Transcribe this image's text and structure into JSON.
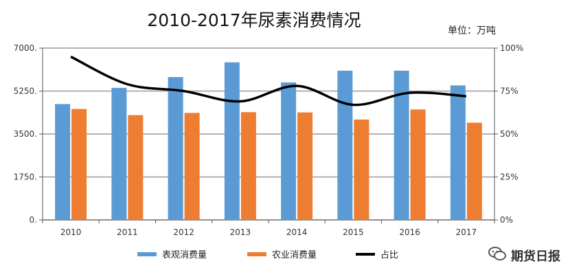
{
  "unit_label": "单位：万吨",
  "watermark": {
    "text": "期货日报",
    "icon": "wechat-icon"
  },
  "colors": {
    "blue": "#5b9bd5",
    "orange": "#ed7d31",
    "line": "#000000",
    "grid": "#999999"
  },
  "chart_data": {
    "type": "bar",
    "title": "2010-2017年尿素消费情况",
    "categories": [
      "2010",
      "2011",
      "2012",
      "2013",
      "2014",
      "2015",
      "2016",
      "2017"
    ],
    "series": [
      {
        "name": "表观消费量",
        "type": "bar",
        "axis": "left",
        "color": "#5b9bd5",
        "values": [
          4720,
          5380,
          5820,
          6420,
          5600,
          6080,
          6080,
          5480
        ]
      },
      {
        "name": "农业消费量",
        "type": "bar",
        "axis": "left",
        "color": "#ed7d31",
        "values": [
          4520,
          4270,
          4360,
          4390,
          4380,
          4090,
          4500,
          3960
        ]
      },
      {
        "name": "占比",
        "type": "line",
        "axis": "right",
        "color": "#000000",
        "smooth": true,
        "values": [
          95,
          79,
          75,
          69,
          78,
          67,
          74,
          72
        ]
      }
    ],
    "y_left": {
      "ylim": [
        0,
        7000
      ],
      "ticks": [
        "0.",
        "1750.",
        "3500.",
        "5250.",
        "7000."
      ]
    },
    "y_right": {
      "ylim": [
        0,
        100
      ],
      "ticks": [
        "0%",
        "25%",
        "50%",
        "75%",
        "100%"
      ]
    },
    "grid": true,
    "legend": "bottom"
  }
}
